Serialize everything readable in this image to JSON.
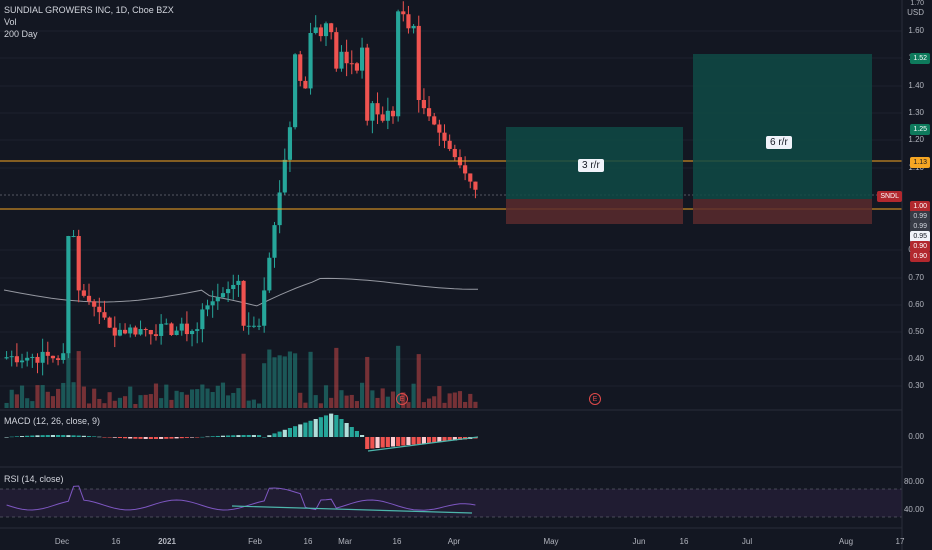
{
  "legend": {
    "symbol": "SUNDIAL GROWERS INC, 1D, Cboe BZX",
    "volume": "Vol",
    "ma": "200 Day"
  },
  "macd_label": "MACD (12, 26, close, 9)",
  "rsi_label": "RSI (14, close)",
  "price_axis": {
    "currency": "USD",
    "ticks": [
      "1.60",
      "1.50",
      "1.40",
      "1.30",
      "1.20",
      "1.10",
      "0.80",
      "0.70",
      "0.60",
      "0.50",
      "0.40",
      "0.30"
    ],
    "top_tick": "1.70"
  },
  "macd_axis": {
    "tick": "0.00"
  },
  "rsi_axis": {
    "ticks": [
      "80.00",
      "40.00"
    ]
  },
  "badges": [
    {
      "text": "1.52",
      "style": "green"
    },
    {
      "text": "1.25",
      "style": "green"
    },
    {
      "text": "1.13",
      "style": "orange"
    },
    {
      "text": "SNDL",
      "style": "red"
    },
    {
      "text": "1.00",
      "style": "red"
    },
    {
      "text": "0.99",
      "style": "gray"
    },
    {
      "text": "0.99",
      "style": "gray"
    },
    {
      "text": "0.95",
      "style": "white"
    },
    {
      "text": "0.90",
      "style": "red"
    },
    {
      "text": "0.90",
      "style": "red"
    }
  ],
  "rr_labels": [
    "3 r/r",
    "6 r/r"
  ],
  "event_marker": "E",
  "dates": [
    "Dec",
    "16",
    "2021",
    "Feb",
    "16",
    "Mar",
    "16",
    "Apr",
    "May",
    "Jun",
    "16",
    "Jul",
    "Aug",
    "17"
  ],
  "colors": {
    "up": "#26a69a",
    "down": "#ef5350",
    "horizontal_line": "#f5a623",
    "rr_target": "#0f4a45",
    "rr_stop": "#5a2a2d",
    "ma": "#9598a1",
    "rsi_band": "#2a1f3d",
    "rsi_line": "#7e57c2",
    "trend": "#4db6ac"
  }
}
